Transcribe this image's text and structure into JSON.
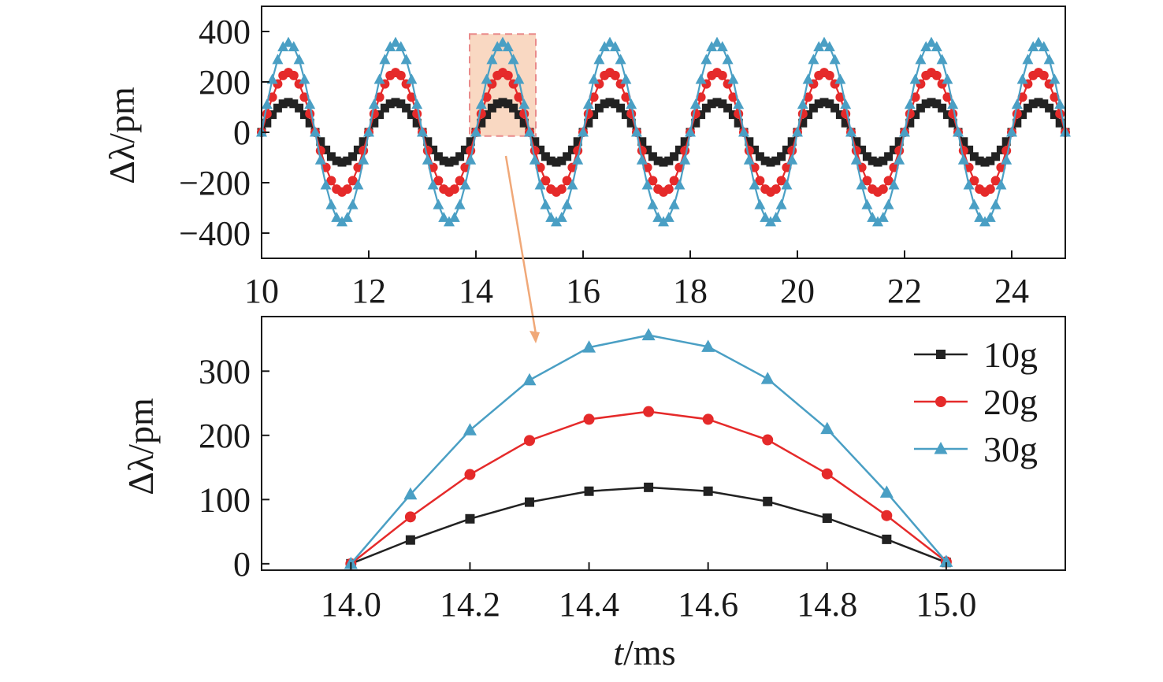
{
  "chart_data": [
    {
      "type": "line",
      "panel": "overview",
      "xlim": [
        10,
        25
      ],
      "ylim": [
        -500,
        500
      ],
      "x_ticks": [
        10,
        12,
        14,
        16,
        18,
        20,
        22,
        24
      ],
      "y_ticks": [
        -400,
        -200,
        0,
        200,
        400
      ],
      "x_tick_labels": [
        "10",
        "12",
        "14",
        "16",
        "18",
        "20",
        "22",
        "24"
      ],
      "y_tick_labels": [
        "−400",
        "−200",
        "0",
        "200",
        "400"
      ],
      "ylabel": "Δλ/pm",
      "xlabel": "",
      "grid": false,
      "signal": {
        "period_ms": 2.0,
        "start_ms": 10.0,
        "sample_step_ms": 0.1
      },
      "series": [
        {
          "name": "10g",
          "amplitude": 119,
          "color": "#222222",
          "marker": "square"
        },
        {
          "name": "20g",
          "amplitude": 237,
          "color": "#e52a2a",
          "marker": "circle"
        },
        {
          "name": "30g",
          "amplitude": 356,
          "color": "#4a9fc4",
          "marker": "triangle"
        }
      ],
      "highlight_window": {
        "x": [
          14.0,
          15.0
        ],
        "color": "#f6c8a8",
        "border_color": "#e98a8a"
      }
    },
    {
      "type": "line",
      "panel": "zoom",
      "xlim": [
        13.85,
        15.2
      ],
      "ylim": [
        -10,
        385
      ],
      "x_ticks": [
        14.0,
        14.2,
        14.4,
        14.6,
        14.8,
        15.0
      ],
      "y_ticks": [
        0,
        100,
        200,
        300
      ],
      "x_tick_labels": [
        "14.0",
        "14.2",
        "14.4",
        "14.6",
        "14.8",
        "15.0"
      ],
      "y_tick_labels": [
        "0",
        "100",
        "200",
        "300"
      ],
      "ylabel": "Δλ/pm",
      "xlabel": "t/ms",
      "xlabel_italic_part": "t",
      "xlabel_rest": "/ms",
      "grid": false,
      "legend_position": "top-right",
      "x": [
        14.0,
        14.1,
        14.2,
        14.3,
        14.4,
        14.5,
        14.6,
        14.7,
        14.8,
        14.9,
        15.0
      ],
      "series": [
        {
          "name": "10g",
          "color": "#222222",
          "marker": "square",
          "values": [
            0,
            37,
            70,
            96,
            113,
            119,
            113,
            97,
            71,
            38,
            2
          ]
        },
        {
          "name": "20g",
          "color": "#e52a2a",
          "marker": "circle",
          "values": [
            0,
            73,
            139,
            192,
            225,
            237,
            225,
            193,
            140,
            75,
            3
          ]
        },
        {
          "name": "30g",
          "color": "#4a9fc4",
          "marker": "triangle",
          "values": [
            0,
            108,
            208,
            286,
            337,
            356,
            338,
            288,
            210,
            111,
            3
          ]
        }
      ]
    }
  ],
  "connector_color": "#f0a878"
}
